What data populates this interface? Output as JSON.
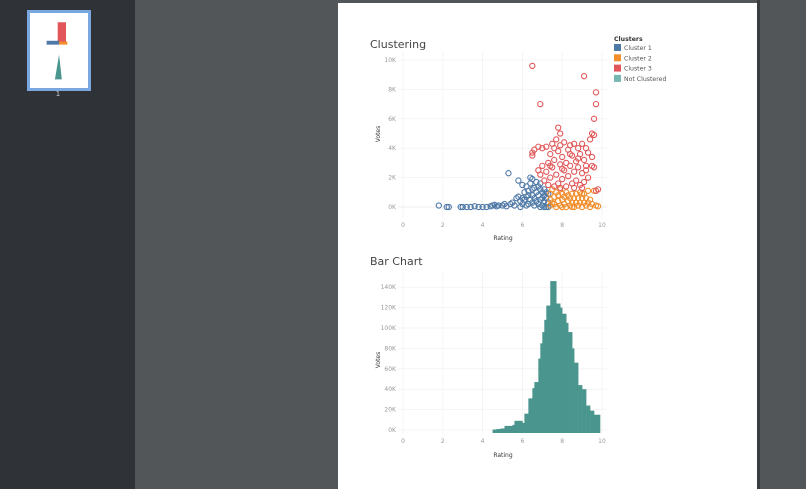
{
  "viewer": {
    "page_thumbnails": [
      {
        "label": "1",
        "selected": true
      }
    ],
    "selected_color": "#7ba7e0"
  },
  "chart_data": [
    {
      "type": "scatter",
      "title": "Clustering",
      "xlabel": "Rating",
      "ylabel": "Votes",
      "xlim": [
        0,
        10
      ],
      "ylim": [
        -0.4,
        10.4
      ],
      "xticks": [
        "0",
        "2",
        "4",
        "6",
        "8",
        "10"
      ],
      "xtick_values": [
        0,
        2,
        4,
        6,
        8,
        10
      ],
      "yticks": [
        "0K",
        "2K",
        "4K",
        "6K",
        "8K",
        "10K"
      ],
      "ytick_values": [
        0,
        2,
        4,
        6,
        8,
        10
      ],
      "y_unit": "thousands",
      "grid": true,
      "marker": "open-circle",
      "legend": {
        "title": "Clusters",
        "placement": "right",
        "entries": [
          {
            "name": "Cluster 1",
            "color": "#4e79a7"
          },
          {
            "name": "Cluster 2",
            "color": "#f28e2b"
          },
          {
            "name": "Cluster 3",
            "color": "#e15759"
          },
          {
            "name": "Not Clustered",
            "color": "#76b7b2"
          }
        ]
      },
      "series": [
        {
          "name": "Cluster 1",
          "color": "#4e79a7",
          "points": [
            [
              1.8,
              0.1
            ],
            [
              2.2,
              0
            ],
            [
              2.3,
              0
            ],
            [
              2.9,
              0
            ],
            [
              3.0,
              0
            ],
            [
              3.2,
              0
            ],
            [
              3.4,
              0
            ],
            [
              3.6,
              0.05
            ],
            [
              3.8,
              0
            ],
            [
              4.0,
              0
            ],
            [
              4.2,
              0
            ],
            [
              4.4,
              0.05
            ],
            [
              4.5,
              0.1
            ],
            [
              4.6,
              0.15
            ],
            [
              4.7,
              0.05
            ],
            [
              4.8,
              0.1
            ],
            [
              5.0,
              0.1
            ],
            [
              5.1,
              0.2
            ],
            [
              5.2,
              0.05
            ],
            [
              5.3,
              2.3
            ],
            [
              5.4,
              0.2
            ],
            [
              5.5,
              0.3
            ],
            [
              5.6,
              0.1
            ],
            [
              5.7,
              0.6
            ],
            [
              5.8,
              1.8
            ],
            [
              5.8,
              0.7
            ],
            [
              5.9,
              0.4
            ],
            [
              5.9,
              0.0
            ],
            [
              6.0,
              1.5
            ],
            [
              6.0,
              0.2
            ],
            [
              6.0,
              0.6
            ],
            [
              6.1,
              0.5
            ],
            [
              6.1,
              1.0
            ],
            [
              6.2,
              1.4
            ],
            [
              6.2,
              0.1
            ],
            [
              6.3,
              0.8
            ],
            [
              6.3,
              1.1
            ],
            [
              6.3,
              0.2
            ],
            [
              6.4,
              2.0
            ],
            [
              6.4,
              1.6
            ],
            [
              6.4,
              0.5
            ],
            [
              6.5,
              1.9
            ],
            [
              6.5,
              0.3
            ],
            [
              6.5,
              1.2
            ],
            [
              6.5,
              0.8
            ],
            [
              6.6,
              1.3
            ],
            [
              6.6,
              0.6
            ],
            [
              6.6,
              0.1
            ],
            [
              6.7,
              1.7
            ],
            [
              6.7,
              1.0
            ],
            [
              6.7,
              0.4
            ],
            [
              6.8,
              1.4
            ],
            [
              6.8,
              0.2
            ],
            [
              6.8,
              0.8
            ],
            [
              6.9,
              1.2
            ],
            [
              6.9,
              0.5
            ],
            [
              6.9,
              0.0
            ],
            [
              7.0,
              1.0
            ],
            [
              7.0,
              0.1
            ],
            [
              7.0,
              0.6
            ],
            [
              7.1,
              0.8
            ],
            [
              7.1,
              0.4
            ],
            [
              7.1,
              1.2
            ],
            [
              7.2,
              0.6
            ],
            [
              7.2,
              0.0
            ],
            [
              7.2,
              1.0
            ],
            [
              7.3,
              0.3
            ],
            [
              7.3,
              0.9
            ],
            [
              7.3,
              0.0
            ],
            [
              6.2,
              0.7
            ],
            [
              6.9,
              1.6
            ],
            [
              7.1,
              0.0
            ]
          ]
        },
        {
          "name": "Cluster 2",
          "color": "#f28e2b",
          "points": [
            [
              7.4,
              0.1
            ],
            [
              7.4,
              0.5
            ],
            [
              7.4,
              0.9
            ],
            [
              7.5,
              1.2
            ],
            [
              7.6,
              0.2
            ],
            [
              7.6,
              0.7
            ],
            [
              7.7,
              0.0
            ],
            [
              7.7,
              1.0
            ],
            [
              7.8,
              0.4
            ],
            [
              7.8,
              0.8
            ],
            [
              7.9,
              0.1
            ],
            [
              7.9,
              1.2
            ],
            [
              8.0,
              0.5
            ],
            [
              8.0,
              0.9
            ],
            [
              8.1,
              0.2
            ],
            [
              8.1,
              0.7
            ],
            [
              8.2,
              0.0
            ],
            [
              8.2,
              1.0
            ],
            [
              8.3,
              0.4
            ],
            [
              8.3,
              0.8
            ],
            [
              8.4,
              0.1
            ],
            [
              8.4,
              0.6
            ],
            [
              8.5,
              0.3
            ],
            [
              8.5,
              0.9
            ],
            [
              8.6,
              0.0
            ],
            [
              8.6,
              0.6
            ],
            [
              8.7,
              0.3
            ],
            [
              8.7,
              0.9
            ],
            [
              8.8,
              0.1
            ],
            [
              8.8,
              0.6
            ],
            [
              8.9,
              0.3
            ],
            [
              8.9,
              1.0
            ],
            [
              9.0,
              0.0
            ],
            [
              9.0,
              0.6
            ],
            [
              9.1,
              0.3
            ],
            [
              9.1,
              0.9
            ],
            [
              9.2,
              0.1
            ],
            [
              9.2,
              0.6
            ],
            [
              9.3,
              0.3
            ],
            [
              9.3,
              1.1
            ],
            [
              9.4,
              0.0
            ],
            [
              9.4,
              0.5
            ],
            [
              9.5,
              0.2
            ],
            [
              9.6,
              1.1
            ],
            [
              9.7,
              0.1
            ],
            [
              9.8,
              0.05
            ],
            [
              7.5,
              0.3
            ],
            [
              8.0,
              0.0
            ],
            [
              8.5,
              0.0
            ],
            [
              9.0,
              0.9
            ]
          ]
        },
        {
          "name": "Cluster 3",
          "color": "#e15759",
          "points": [
            [
              6.5,
              9.6
            ],
            [
              9.1,
              8.9
            ],
            [
              9.7,
              7.8
            ],
            [
              9.7,
              7.0
            ],
            [
              6.9,
              7.0
            ],
            [
              9.6,
              6.0
            ],
            [
              9.5,
              5.0
            ],
            [
              9.6,
              4.9
            ],
            [
              7.8,
              5.4
            ],
            [
              7.9,
              5.0
            ],
            [
              9.5,
              3.4
            ],
            [
              6.5,
              3.5
            ],
            [
              6.5,
              3.7
            ],
            [
              6.6,
              3.9
            ],
            [
              6.8,
              4.1
            ],
            [
              7.0,
              4.0
            ],
            [
              7.2,
              4.1
            ],
            [
              6.8,
              2.5
            ],
            [
              7.0,
              2.8
            ],
            [
              6.9,
              2.2
            ],
            [
              7.1,
              1.8
            ],
            [
              7.2,
              2.4
            ],
            [
              7.3,
              3.0
            ],
            [
              7.3,
              1.5
            ],
            [
              7.4,
              3.6
            ],
            [
              7.4,
              2.0
            ],
            [
              7.5,
              4.3
            ],
            [
              7.5,
              2.7
            ],
            [
              7.6,
              1.4
            ],
            [
              7.6,
              3.2
            ],
            [
              7.7,
              4.6
            ],
            [
              7.7,
              2.2
            ],
            [
              7.8,
              3.8
            ],
            [
              7.8,
              1.6
            ],
            [
              7.9,
              2.9
            ],
            [
              7.9,
              4.2
            ],
            [
              8.0,
              1.9
            ],
            [
              8.0,
              3.4
            ],
            [
              8.1,
              4.4
            ],
            [
              8.1,
              2.5
            ],
            [
              8.2,
              1.4
            ],
            [
              8.2,
              3.0
            ],
            [
              8.3,
              3.9
            ],
            [
              8.3,
              2.1
            ],
            [
              8.4,
              4.2
            ],
            [
              8.4,
              2.8
            ],
            [
              8.5,
              1.6
            ],
            [
              8.5,
              3.5
            ],
            [
              8.6,
              4.3
            ],
            [
              8.6,
              2.4
            ],
            [
              8.7,
              3.1
            ],
            [
              8.7,
              1.8
            ],
            [
              8.8,
              4.0
            ],
            [
              8.8,
              2.7
            ],
            [
              8.9,
              3.6
            ],
            [
              8.9,
              1.5
            ],
            [
              9.0,
              4.3
            ],
            [
              9.0,
              2.3
            ],
            [
              9.1,
              3.2
            ],
            [
              9.1,
              1.7
            ],
            [
              9.2,
              4.0
            ],
            [
              9.2,
              2.8
            ],
            [
              9.3,
              2.0
            ],
            [
              9.3,
              3.7
            ],
            [
              9.4,
              4.6
            ],
            [
              9.5,
              2.8
            ],
            [
              9.6,
              2.7
            ],
            [
              9.7,
              1.1
            ],
            [
              9.8,
              1.2
            ],
            [
              7.6,
              4.0
            ],
            [
              8.0,
              2.6
            ],
            [
              8.4,
              3.6
            ],
            [
              8.8,
              3.3
            ],
            [
              9.2,
              2.5
            ],
            [
              7.4,
              2.8
            ],
            [
              7.9,
              1.3
            ],
            [
              8.6,
              1.3
            ],
            [
              9.0,
              1.3
            ]
          ]
        }
      ]
    },
    {
      "type": "bar",
      "title": "Bar Chart",
      "xlabel": "Rating",
      "ylabel": "Votes",
      "xlim": [
        0,
        10
      ],
      "ylim": [
        -3,
        150
      ],
      "xticks": [
        "0",
        "2",
        "4",
        "6",
        "8",
        "10"
      ],
      "xtick_values": [
        0,
        2,
        4,
        6,
        8,
        10
      ],
      "yticks": [
        "0K",
        "20K",
        "40K",
        "60K",
        "80K",
        "100K",
        "120K",
        "140K"
      ],
      "ytick_values": [
        0,
        20,
        40,
        60,
        80,
        100,
        120,
        140
      ],
      "y_unit": "thousands",
      "grid": true,
      "color": "#4a968f",
      "bin_end": 9.9,
      "bins": [
        [
          4.5,
          0.5
        ],
        [
          4.7,
          1
        ],
        [
          4.9,
          1.5
        ],
        [
          5.1,
          4
        ],
        [
          5.3,
          4
        ],
        [
          5.5,
          5
        ],
        [
          5.6,
          9
        ],
        [
          5.8,
          9
        ],
        [
          6.0,
          7
        ],
        [
          6.1,
          16
        ],
        [
          6.3,
          31
        ],
        [
          6.5,
          41
        ],
        [
          6.6,
          47
        ],
        [
          6.8,
          70
        ],
        [
          6.9,
          85
        ],
        [
          7.0,
          96
        ],
        [
          7.1,
          108
        ],
        [
          7.2,
          122
        ],
        [
          7.4,
          146
        ],
        [
          7.7,
          124
        ],
        [
          7.9,
          120
        ],
        [
          8.0,
          114
        ],
        [
          8.2,
          105
        ],
        [
          8.3,
          96
        ],
        [
          8.5,
          80
        ],
        [
          8.6,
          66
        ],
        [
          8.8,
          44
        ],
        [
          9.0,
          40
        ],
        [
          9.2,
          24
        ],
        [
          9.4,
          19
        ],
        [
          9.6,
          15
        ]
      ]
    }
  ]
}
